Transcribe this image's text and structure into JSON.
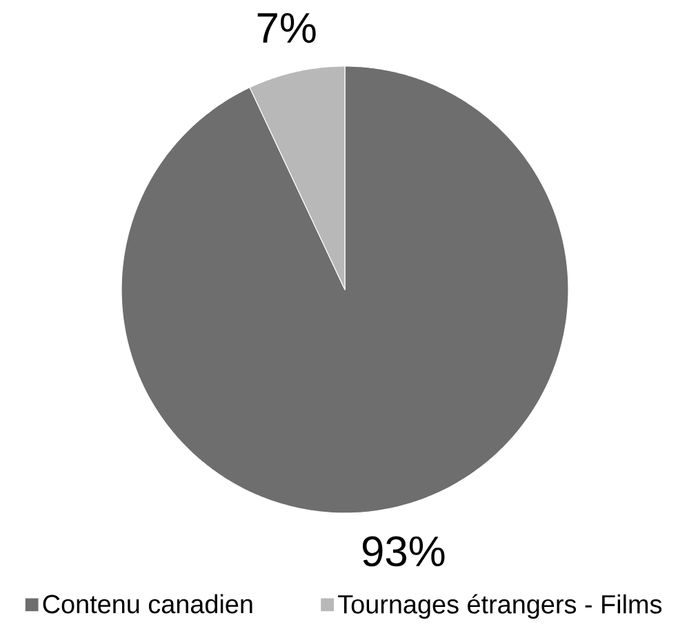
{
  "chart_data": {
    "type": "pie",
    "categories": [
      "Contenu canadien",
      "Tournages étrangers - Films"
    ],
    "values": [
      93,
      7
    ],
    "colors": [
      "#6e6e6e",
      "#b8b8b8"
    ],
    "value_labels": [
      "93%",
      "7%"
    ],
    "legend": "bottom"
  }
}
